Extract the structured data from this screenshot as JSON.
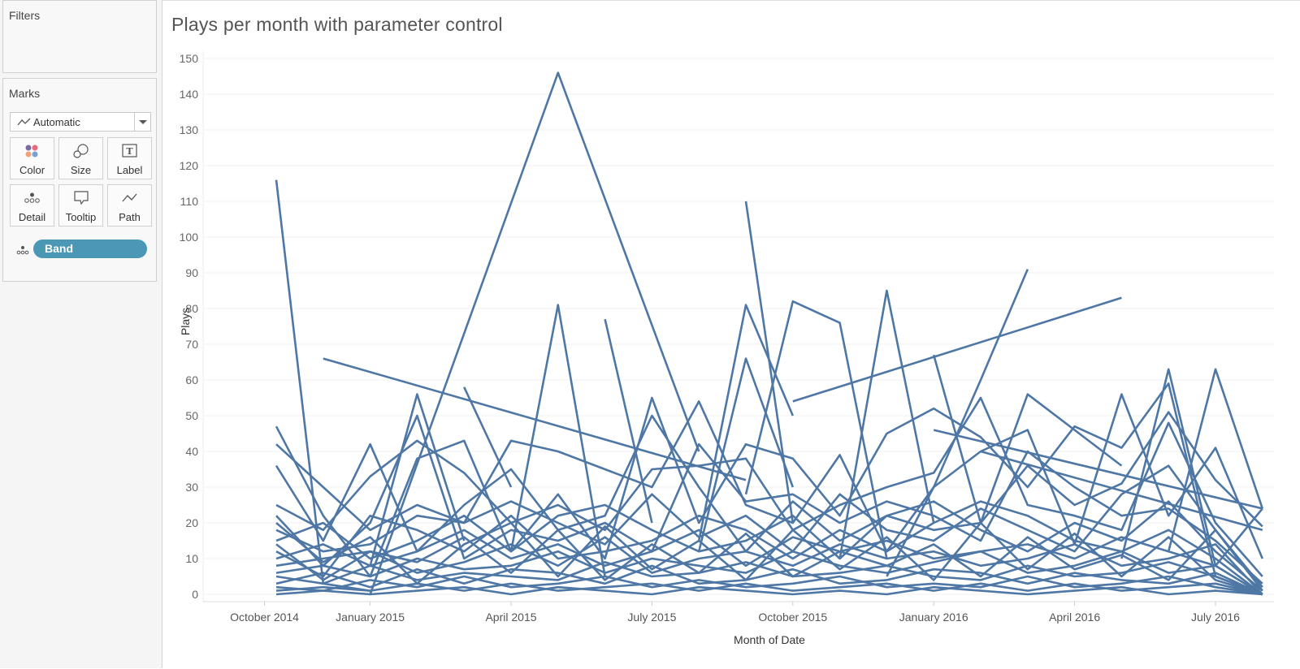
{
  "sidebar": {
    "filters_title": "Filters",
    "marks_title": "Marks",
    "mark_type": "Automatic",
    "buttons": [
      "Color",
      "Size",
      "Label",
      "Detail",
      "Tooltip",
      "Path"
    ],
    "detail_pill": "Band"
  },
  "colors": {
    "line": "#4e77a5",
    "pill": "#4a98b5",
    "grid": "#f0f0f0"
  },
  "chart_data": {
    "type": "line",
    "title": "Plays per month with parameter control",
    "xlabel": "Month of Date",
    "ylabel": "Plays",
    "ylim": [
      0,
      150
    ],
    "yticks": [
      0,
      10,
      20,
      30,
      40,
      50,
      60,
      70,
      80,
      90,
      100,
      110,
      120,
      130,
      140,
      150
    ],
    "x": [
      "Nov 2014",
      "Dec 2014",
      "Jan 2015",
      "Feb 2015",
      "Mar 2015",
      "Apr 2015",
      "May 2015",
      "Jun 2015",
      "Jul 2015",
      "Aug 2015",
      "Sep 2015",
      "Oct 2015",
      "Nov 2015",
      "Dec 2015",
      "Jan 2016",
      "Feb 2016",
      "Mar 2016",
      "Apr 2016",
      "May 2016",
      "Jun 2016",
      "Jul 2016",
      "Aug 2016"
    ],
    "xticks": [
      {
        "label": "October 2014",
        "month": -0.25
      },
      {
        "label": "January 2015",
        "month": 2
      },
      {
        "label": "April 2015",
        "month": 5
      },
      {
        "label": "July 2015",
        "month": 8
      },
      {
        "label": "October 2015",
        "month": 11
      },
      {
        "label": "January 2016",
        "month": 14
      },
      {
        "label": "April 2016",
        "month": 17
      },
      {
        "label": "July 2016",
        "month": 20
      }
    ],
    "series": [
      {
        "values": [
          116,
          3,
          1,
          null,
          null,
          null,
          null,
          null,
          null,
          null,
          null,
          null,
          null,
          null,
          null,
          null,
          null,
          null,
          null,
          null,
          null,
          null
        ]
      },
      {
        "values": [
          null,
          66,
          null,
          null,
          null,
          null,
          null,
          null,
          null,
          null,
          32,
          null,
          null,
          null,
          null,
          null,
          null,
          null,
          null,
          null,
          null,
          null
        ]
      },
      {
        "values": [
          null,
          null,
          0,
          null,
          null,
          null,
          146,
          null,
          null,
          40,
          null,
          null,
          null,
          null,
          null,
          null,
          null,
          null,
          null,
          null,
          null,
          null
        ]
      },
      {
        "values": [
          null,
          null,
          null,
          null,
          null,
          null,
          null,
          null,
          null,
          null,
          110,
          20,
          null,
          null,
          null,
          null,
          null,
          null,
          null,
          null,
          null,
          null
        ]
      },
      {
        "values": [
          null,
          null,
          null,
          null,
          null,
          null,
          null,
          null,
          null,
          null,
          null,
          54,
          null,
          null,
          null,
          null,
          null,
          null,
          83,
          null,
          null,
          null
        ]
      },
      {
        "values": [
          null,
          null,
          null,
          null,
          null,
          null,
          null,
          null,
          null,
          null,
          28,
          82,
          76,
          10,
          null,
          null,
          null,
          null,
          null,
          null,
          null,
          null
        ]
      },
      {
        "values": [
          null,
          null,
          null,
          null,
          null,
          null,
          null,
          null,
          null,
          null,
          null,
          null,
          10,
          85,
          20,
          null,
          null,
          null,
          null,
          null,
          null,
          null
        ]
      },
      {
        "values": [
          null,
          null,
          null,
          null,
          null,
          null,
          null,
          null,
          null,
          null,
          null,
          null,
          null,
          5,
          30,
          60,
          91,
          null,
          null,
          null,
          null,
          null
        ]
      },
      {
        "values": [
          null,
          null,
          null,
          null,
          null,
          12,
          81,
          5,
          null,
          null,
          null,
          null,
          null,
          null,
          null,
          null,
          null,
          null,
          null,
          null,
          null,
          null
        ]
      },
      {
        "values": [
          null,
          null,
          null,
          null,
          null,
          null,
          null,
          null,
          null,
          15,
          81,
          50,
          null,
          null,
          null,
          null,
          null,
          null,
          null,
          null,
          null,
          null
        ]
      },
      {
        "values": [
          null,
          null,
          null,
          null,
          null,
          null,
          null,
          77,
          20,
          null,
          null,
          null,
          null,
          null,
          null,
          null,
          null,
          null,
          null,
          null,
          null,
          null
        ]
      },
      {
        "values": [
          null,
          null,
          null,
          null,
          null,
          null,
          null,
          null,
          null,
          null,
          null,
          null,
          null,
          null,
          null,
          null,
          null,
          null,
          10,
          63,
          8,
          24
        ]
      },
      {
        "values": [
          null,
          null,
          null,
          null,
          null,
          null,
          null,
          null,
          null,
          null,
          null,
          null,
          null,
          null,
          null,
          null,
          null,
          null,
          null,
          12,
          63,
          24
        ]
      },
      {
        "values": [
          null,
          null,
          null,
          null,
          null,
          null,
          null,
          null,
          null,
          12,
          66,
          30,
          null,
          null,
          null,
          null,
          null,
          null,
          null,
          null,
          null,
          null
        ]
      },
      {
        "values": [
          null,
          null,
          null,
          null,
          58,
          30,
          null,
          null,
          null,
          null,
          null,
          null,
          null,
          null,
          null,
          null,
          null,
          null,
          null,
          null,
          null,
          null
        ]
      },
      {
        "values": [
          null,
          null,
          8,
          56,
          15,
          null,
          null,
          null,
          null,
          null,
          null,
          null,
          null,
          null,
          null,
          null,
          null,
          null,
          null,
          null,
          null,
          null
        ]
      },
      {
        "values": [
          null,
          null,
          null,
          null,
          null,
          null,
          null,
          null,
          null,
          null,
          null,
          null,
          null,
          null,
          67,
          20,
          56,
          46,
          36,
          null,
          null,
          null
        ]
      },
      {
        "values": [
          47,
          22,
          5,
          38,
          43,
          12,
          28,
          10,
          55,
          20,
          42,
          38,
          22,
          45,
          52,
          44,
          30,
          47,
          41,
          59,
          5,
          0
        ]
      },
      {
        "values": [
          42,
          30,
          18,
          25,
          20,
          43,
          40,
          35,
          30,
          54,
          25,
          20,
          39,
          12,
          30,
          40,
          46,
          14,
          56,
          22,
          41,
          10
        ]
      },
      {
        "values": [
          36,
          15,
          42,
          12,
          25,
          35,
          18,
          22,
          50,
          30,
          12,
          26,
          15,
          22,
          18,
          20,
          36,
          25,
          31,
          51,
          32,
          19
        ]
      },
      {
        "values": [
          25,
          18,
          33,
          43,
          34,
          20,
          25,
          18,
          35,
          36,
          38,
          18,
          25,
          30,
          34,
          55,
          25,
          22,
          18,
          48,
          20,
          5
        ]
      },
      {
        "values": [
          22,
          8,
          20,
          50,
          10,
          18,
          15,
          20,
          12,
          42,
          26,
          28,
          20,
          26,
          22,
          15,
          40,
          30,
          22,
          24,
          15,
          3
        ]
      },
      {
        "values": [
          18,
          12,
          14,
          22,
          20,
          26,
          20,
          14,
          28,
          16,
          22,
          12,
          28,
          18,
          15,
          24,
          18,
          12,
          28,
          36,
          18,
          2
        ]
      },
      {
        "values": [
          15,
          20,
          10,
          15,
          22,
          12,
          22,
          25,
          18,
          12,
          15,
          22,
          10,
          22,
          26,
          18,
          12,
          20,
          15,
          26,
          12,
          1
        ]
      },
      {
        "values": [
          12,
          5,
          22,
          18,
          12,
          22,
          10,
          12,
          15,
          22,
          18,
          10,
          18,
          12,
          20,
          26,
          22,
          15,
          12,
          18,
          10,
          0
        ]
      },
      {
        "values": [
          10,
          14,
          8,
          12,
          18,
          10,
          14,
          8,
          12,
          18,
          8,
          16,
          12,
          15,
          10,
          12,
          14,
          10,
          16,
          12,
          8,
          0
        ]
      },
      {
        "values": [
          8,
          10,
          12,
          6,
          9,
          14,
          8,
          16,
          6,
          10,
          12,
          8,
          14,
          10,
          12,
          8,
          10,
          14,
          8,
          10,
          14,
          0
        ]
      },
      {
        "values": [
          6,
          8,
          5,
          10,
          7,
          8,
          12,
          6,
          10,
          8,
          6,
          12,
          8,
          6,
          9,
          12,
          6,
          8,
          12,
          6,
          8,
          0
        ]
      },
      {
        "values": [
          5,
          3,
          8,
          4,
          6,
          5,
          4,
          9,
          5,
          6,
          9,
          5,
          6,
          8,
          5,
          4,
          8,
          5,
          6,
          9,
          5,
          0
        ]
      },
      {
        "values": [
          3,
          6,
          2,
          7,
          3,
          7,
          6,
          3,
          8,
          3,
          4,
          7,
          3,
          4,
          7,
          6,
          3,
          6,
          4,
          3,
          6,
          0
        ]
      },
      {
        "values": [
          2,
          1,
          4,
          2,
          5,
          2,
          3,
          5,
          2,
          4,
          2,
          3,
          5,
          2,
          3,
          2,
          5,
          2,
          3,
          5,
          2,
          0
        ]
      },
      {
        "values": [
          1,
          2,
          1,
          3,
          1,
          3,
          1,
          2,
          3,
          1,
          3,
          1,
          2,
          3,
          1,
          3,
          1,
          3,
          1,
          2,
          3,
          0
        ]
      },
      {
        "values": [
          0,
          1,
          0,
          1,
          2,
          0,
          2,
          1,
          0,
          2,
          1,
          0,
          1,
          0,
          2,
          1,
          0,
          1,
          2,
          0,
          1,
          0
        ]
      },
      {
        "values": [
          14,
          4,
          12,
          9,
          16,
          6,
          18,
          4,
          14,
          6,
          17,
          5,
          12,
          8,
          14,
          5,
          16,
          7,
          11,
          4,
          18,
          1
        ]
      },
      {
        "values": [
          20,
          9,
          16,
          3,
          14,
          20,
          5,
          19,
          7,
          15,
          4,
          18,
          7,
          16,
          4,
          20,
          7,
          17,
          5,
          16,
          4,
          0
        ]
      },
      {
        "values": [
          null,
          null,
          null,
          null,
          null,
          null,
          null,
          null,
          null,
          null,
          null,
          null,
          null,
          null,
          null,
          40,
          null,
          null,
          null,
          null,
          null,
          18
        ]
      },
      {
        "values": [
          null,
          null,
          null,
          null,
          null,
          null,
          null,
          null,
          null,
          null,
          null,
          null,
          null,
          null,
          46,
          null,
          null,
          null,
          null,
          null,
          null,
          24
        ]
      }
    ]
  }
}
